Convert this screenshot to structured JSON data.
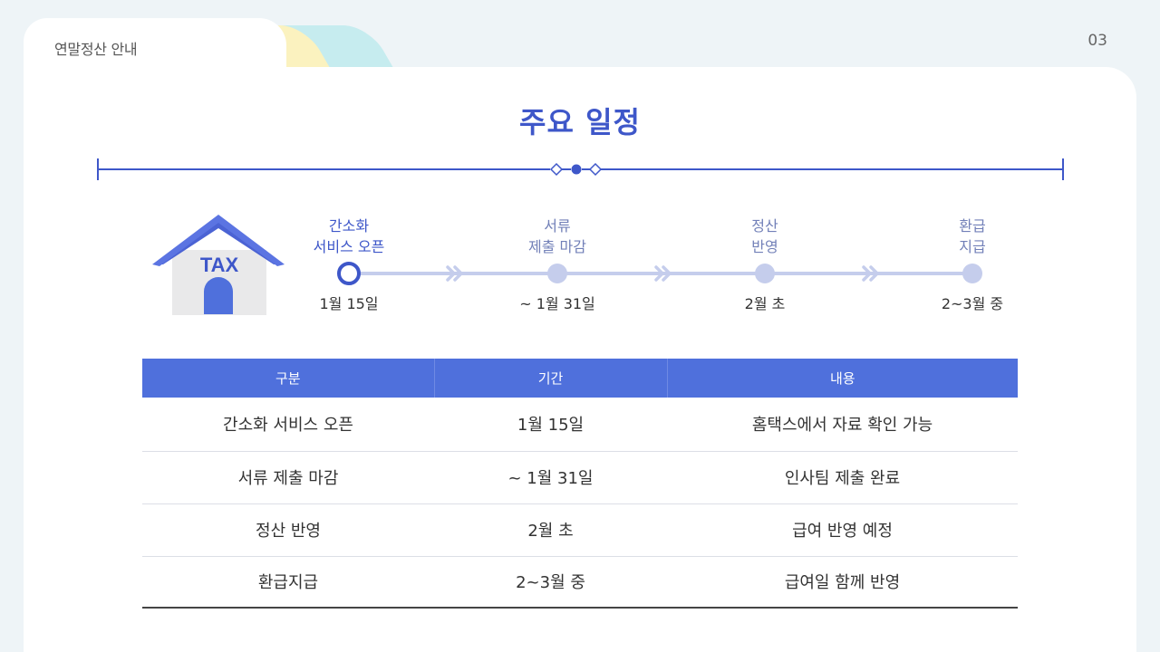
{
  "header": {
    "tab_label": "연말정산 안내",
    "page_number": "03"
  },
  "title": "주요 일정",
  "house_icon": {
    "text": "TAX"
  },
  "timeline": [
    {
      "label_line1": "간소화",
      "label_line2": "서비스 오픈",
      "date": "1월 15일"
    },
    {
      "label_line1": "서류",
      "label_line2": "제출 마감",
      "date": "~ 1월 31일"
    },
    {
      "label_line1": "정산",
      "label_line2": "반영",
      "date": "2월 초"
    },
    {
      "label_line1": "환급",
      "label_line2": "지급",
      "date": "2~3월 중"
    }
  ],
  "table": {
    "headers": [
      "구분",
      "기간",
      "내용"
    ],
    "rows": [
      [
        "간소화 서비스 오픈",
        "1월 15일",
        "홈택스에서 자료 확인 가능"
      ],
      [
        "서류 제출 마감",
        "~ 1월 31일",
        "인사팀 제출 완료"
      ],
      [
        "정산 반영",
        "2월 초",
        "급여 반영 예정"
      ],
      [
        "환급지급",
        "2~3월 중",
        "급여일 함께 반영"
      ]
    ]
  },
  "colors": {
    "accent": "#3e57c9",
    "table_header": "#4f70dc",
    "timeline_line": "#c5cdec",
    "tab_yellow": "#fbf2bf",
    "tab_cyan": "#c6ecef"
  }
}
